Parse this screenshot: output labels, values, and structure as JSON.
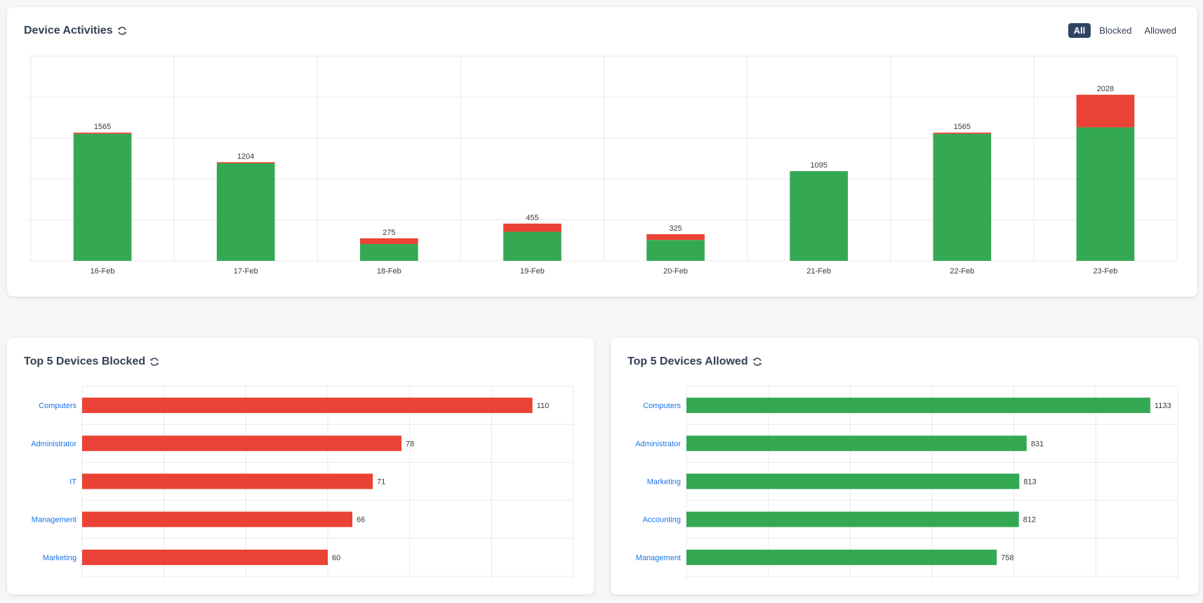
{
  "activities": {
    "title": "Device Activities",
    "filters": [
      {
        "label": "All",
        "active": true
      },
      {
        "label": "Blocked",
        "active": false
      },
      {
        "label": "Allowed",
        "active": false
      }
    ]
  },
  "blocked": {
    "title": "Top 5 Devices Blocked"
  },
  "allowed": {
    "title": "Top 5 Devices Allowed"
  },
  "colors": {
    "allowed": "#34a853",
    "blocked": "#ea4335",
    "label": "#1a73e8",
    "grid": "#e9e9e9"
  },
  "chart_data": [
    {
      "type": "bar",
      "stacked": true,
      "title": "Device Activities",
      "categories": [
        "16-Feb",
        "17-Feb",
        "18-Feb",
        "19-Feb",
        "20-Feb",
        "21-Feb",
        "22-Feb",
        "23-Feb"
      ],
      "series": [
        {
          "values": [
            1550,
            1190,
            205,
            355,
            255,
            1095,
            1550,
            1630
          ]
        },
        {
          "values": [
            15,
            14,
            70,
            100,
            70,
            0,
            15,
            398
          ]
        }
      ],
      "totals": [
        "1565",
        "1204",
        "275",
        "455",
        "325",
        "1095",
        "1565",
        "2028"
      ],
      "ylim": [
        0,
        2500
      ],
      "grid": true
    },
    {
      "type": "bar",
      "orientation": "horizontal",
      "title": "Top 5 Devices Blocked",
      "categories": [
        "Computers",
        "Administrator",
        "IT",
        "Management",
        "Marketing"
      ],
      "values": [
        110,
        78,
        71,
        66,
        60
      ],
      "xlim": [
        0,
        120
      ],
      "grid": true
    },
    {
      "type": "bar",
      "orientation": "horizontal",
      "title": "Top 5 Devices Allowed",
      "categories": [
        "Computers",
        "Administrator",
        "Marketing",
        "Accounting",
        "Management"
      ],
      "values": [
        1133,
        831,
        813,
        812,
        758
      ],
      "xlim": [
        0,
        1200
      ],
      "grid": true
    }
  ]
}
